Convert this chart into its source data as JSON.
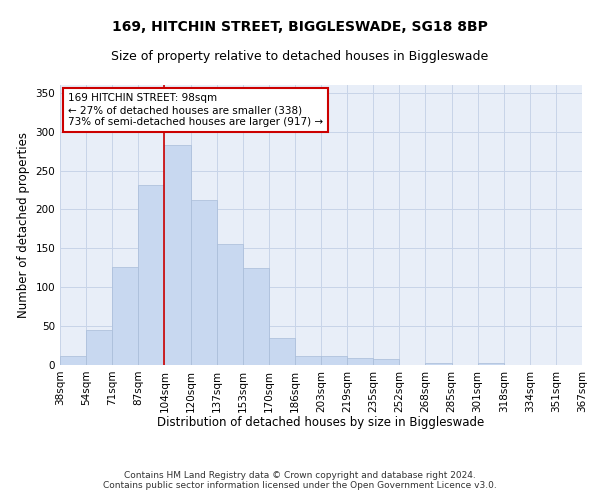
{
  "title": "169, HITCHIN STREET, BIGGLESWADE, SG18 8BP",
  "subtitle": "Size of property relative to detached houses in Biggleswade",
  "xlabel": "Distribution of detached houses by size in Biggleswade",
  "ylabel": "Number of detached properties",
  "bar_values": [
    11,
    45,
    126,
    232,
    283,
    212,
    156,
    125,
    35,
    11,
    11,
    9,
    8,
    0,
    3,
    0,
    3,
    0,
    0,
    0
  ],
  "bar_labels": [
    "38sqm",
    "54sqm",
    "71sqm",
    "87sqm",
    "104sqm",
    "120sqm",
    "137sqm",
    "153sqm",
    "170sqm",
    "186sqm",
    "203sqm",
    "219sqm",
    "235sqm",
    "252sqm",
    "268sqm",
    "285sqm",
    "301sqm",
    "318sqm",
    "334sqm",
    "351sqm",
    "367sqm"
  ],
  "bar_color": "#c8d8f0",
  "bar_edge_color": "#a8bcd8",
  "bar_width": 1.0,
  "vline_x_index": 3.5,
  "vline_color": "#cc0000",
  "annotation_text": "169 HITCHIN STREET: 98sqm\n← 27% of detached houses are smaller (338)\n73% of semi-detached houses are larger (917) →",
  "annotation_box_color": "#ffffff",
  "annotation_box_edge": "#cc0000",
  "ylim": [
    0,
    360
  ],
  "yticks": [
    0,
    50,
    100,
    150,
    200,
    250,
    300,
    350
  ],
  "grid_color": "#c8d4e8",
  "bg_color": "#e8eef8",
  "footer_text": "Contains HM Land Registry data © Crown copyright and database right 2024.\nContains public sector information licensed under the Open Government Licence v3.0.",
  "title_fontsize": 10,
  "subtitle_fontsize": 9,
  "xlabel_fontsize": 8.5,
  "ylabel_fontsize": 8.5,
  "tick_fontsize": 7.5,
  "annotation_fontsize": 7.5,
  "footer_fontsize": 6.5
}
